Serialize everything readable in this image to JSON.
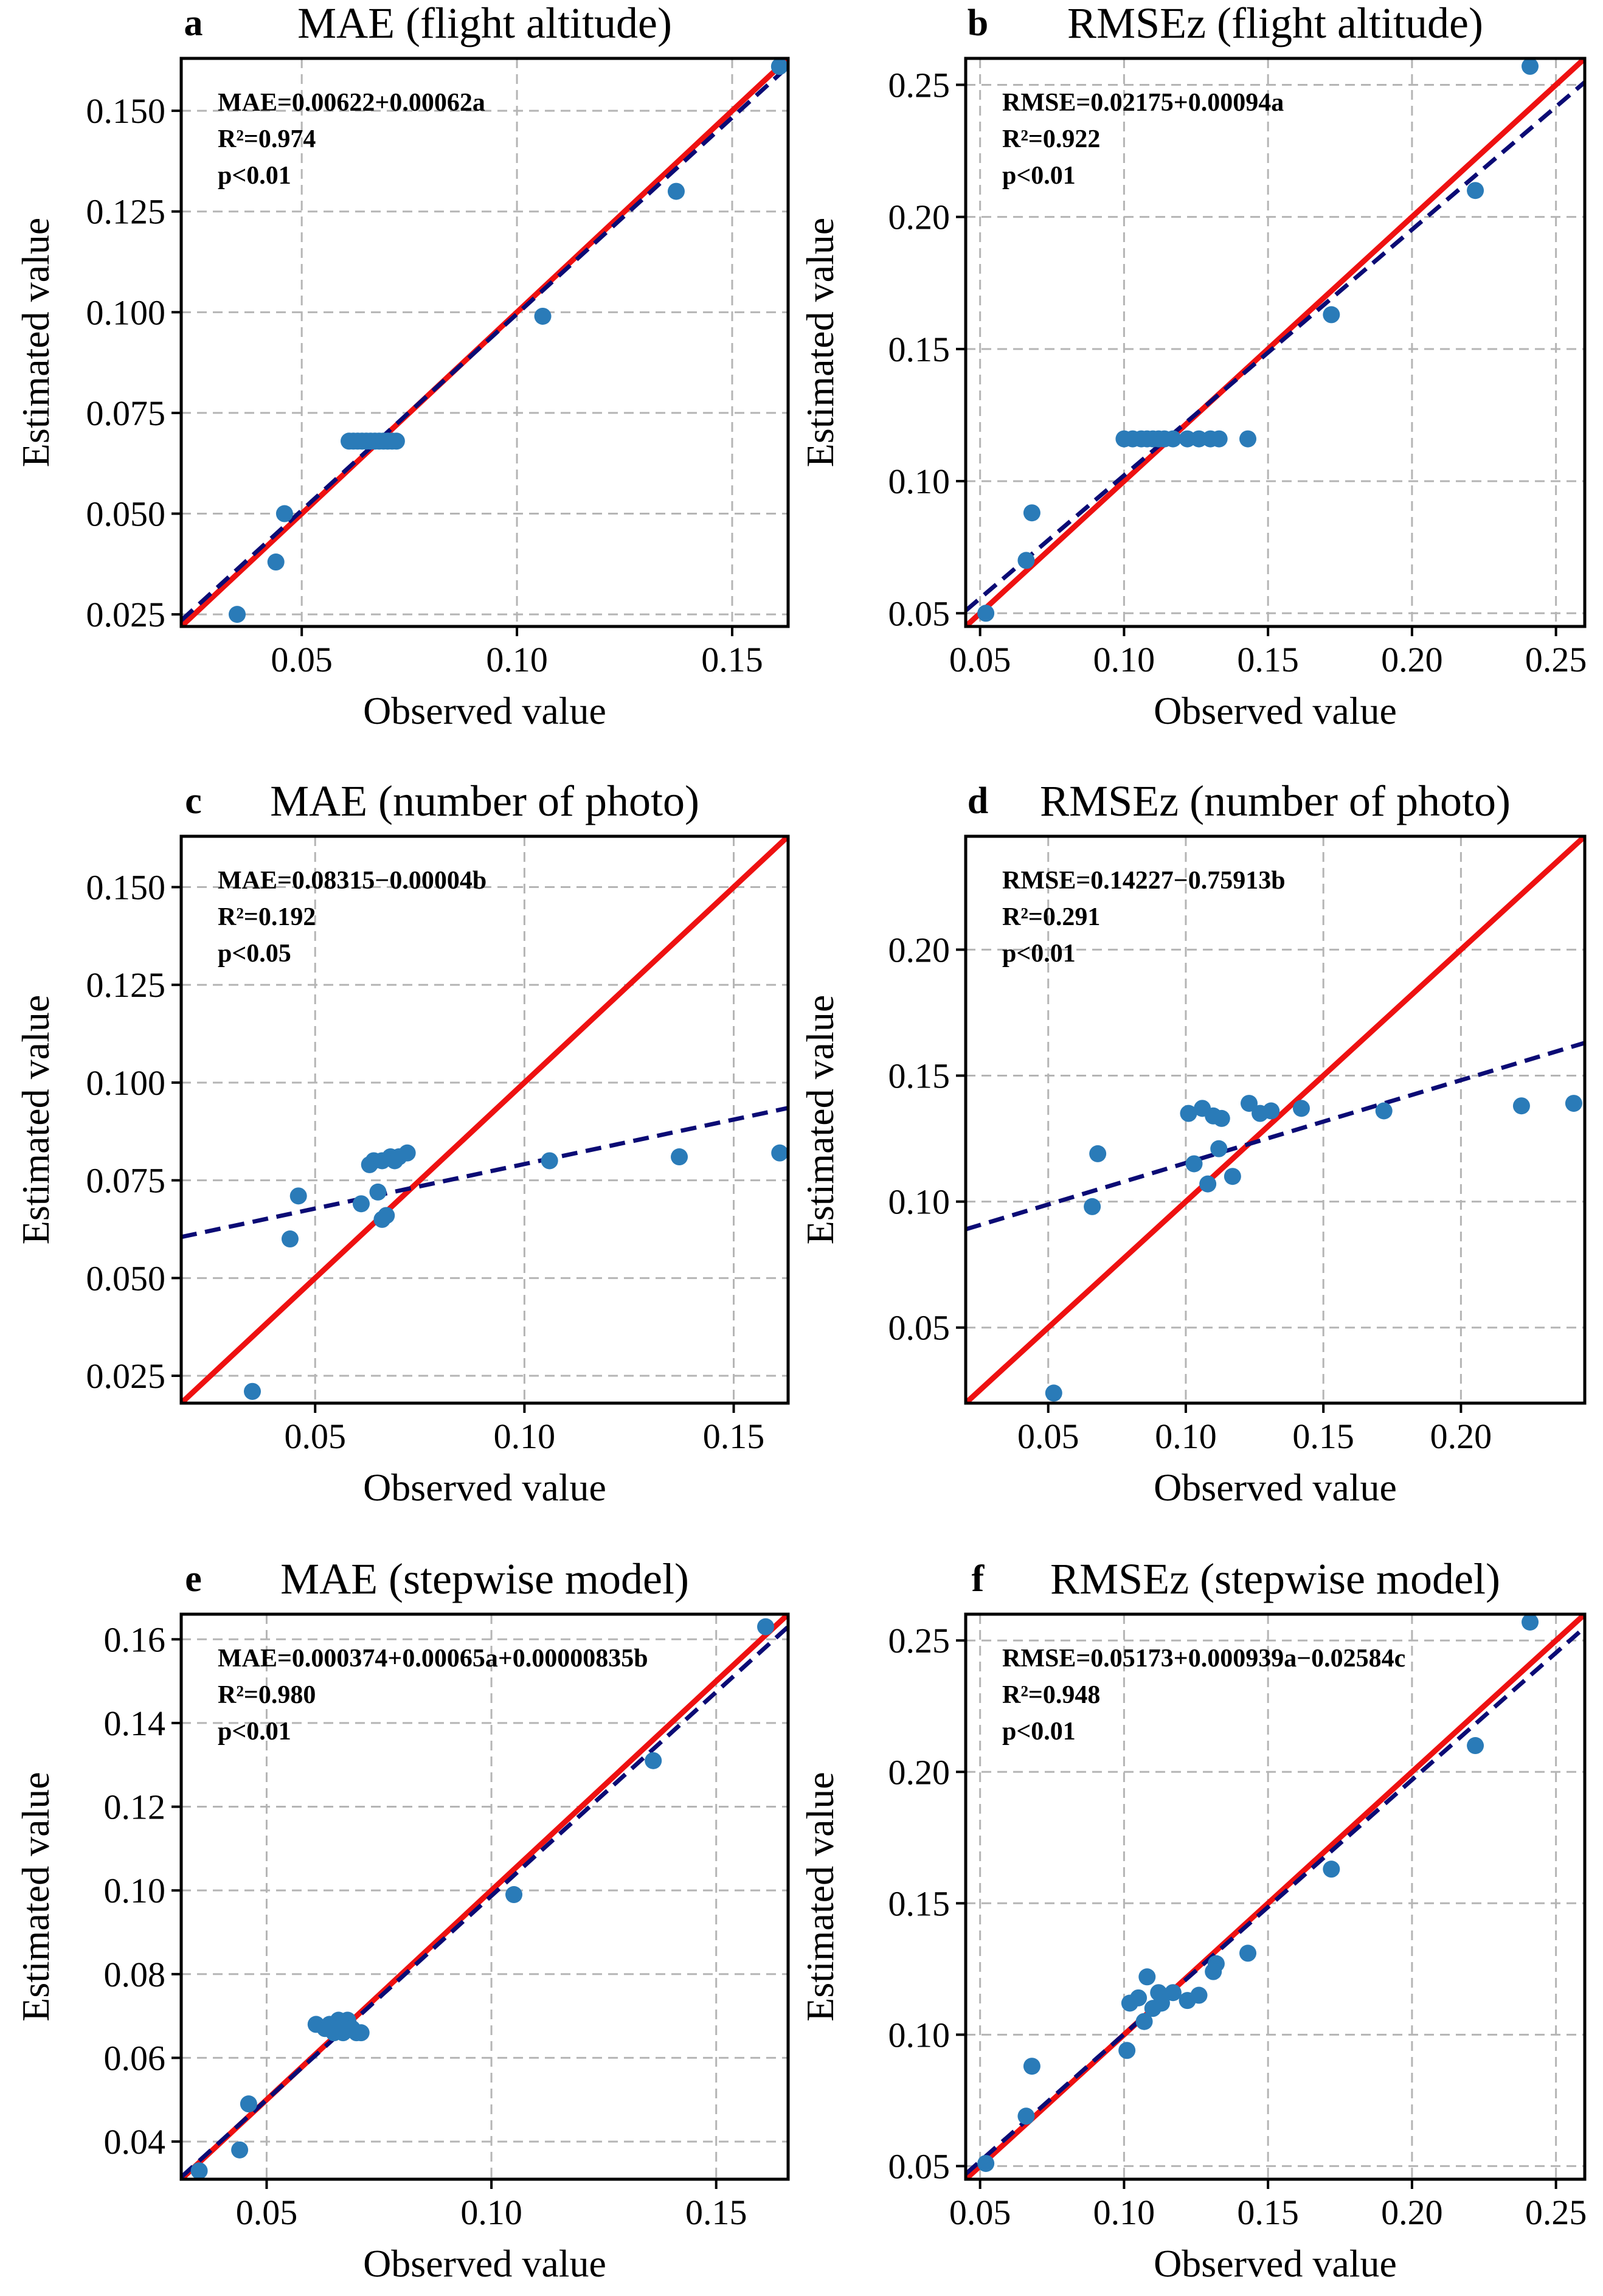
{
  "figure": {
    "panels_description": "Six scatter plots of estimated vs observed values"
  },
  "chart_data": [
    {
      "id": "a",
      "type": "scatter",
      "letter": "a",
      "title": "MAE (flight altitude)",
      "xlabel": "Observed value",
      "ylabel": "Estimated value",
      "xlim": [
        0.022,
        0.163
      ],
      "ylim": [
        0.022,
        0.163
      ],
      "xticks": [
        0.05,
        0.1,
        0.15
      ],
      "xtick_labels": [
        "0.05",
        "0.10",
        "0.15"
      ],
      "yticks": [
        0.025,
        0.05,
        0.075,
        0.1,
        0.125,
        0.15
      ],
      "ytick_labels": [
        "0.025",
        "0.050",
        "0.075",
        "0.100",
        "0.125",
        "0.150"
      ],
      "annotations": [
        "MAE=0.00622+0.00062a",
        "R²=0.974",
        "p<0.01"
      ],
      "legend": "none",
      "grid": true,
      "one_to_one_line": true,
      "fit_line": {
        "start": [
          0.022,
          0.0235
        ],
        "end": [
          0.163,
          0.161
        ]
      },
      "points": {
        "x": [
          0.035,
          0.044,
          0.046,
          0.061,
          0.062,
          0.063,
          0.064,
          0.065,
          0.066,
          0.067,
          0.068,
          0.069,
          0.07,
          0.071,
          0.072,
          0.106,
          0.137,
          0.161
        ],
        "y": [
          0.025,
          0.038,
          0.05,
          0.068,
          0.068,
          0.068,
          0.068,
          0.068,
          0.068,
          0.068,
          0.068,
          0.068,
          0.068,
          0.068,
          0.068,
          0.099,
          0.13,
          0.161
        ]
      }
    },
    {
      "id": "b",
      "type": "scatter",
      "letter": "b",
      "title": "RMSEz (flight altitude)",
      "xlabel": "Observed value",
      "ylabel": "Estimated value",
      "xlim": [
        0.045,
        0.26
      ],
      "ylim": [
        0.045,
        0.26
      ],
      "xticks": [
        0.05,
        0.1,
        0.15,
        0.2,
        0.25
      ],
      "xtick_labels": [
        "0.05",
        "0.10",
        "0.15",
        "0.20",
        "0.25"
      ],
      "yticks": [
        0.05,
        0.1,
        0.15,
        0.2,
        0.25
      ],
      "ytick_labels": [
        "0.05",
        "0.10",
        "0.15",
        "0.20",
        "0.25"
      ],
      "annotations": [
        "RMSE=0.02175+0.00094a",
        "R²=0.922",
        "p<0.01"
      ],
      "legend": "none",
      "grid": true,
      "one_to_one_line": true,
      "fit_line": {
        "start": [
          0.045,
          0.051
        ],
        "end": [
          0.26,
          0.251
        ]
      },
      "points": {
        "x": [
          0.052,
          0.066,
          0.068,
          0.1,
          0.103,
          0.106,
          0.108,
          0.11,
          0.112,
          0.114,
          0.117,
          0.122,
          0.126,
          0.13,
          0.133,
          0.143,
          0.172,
          0.222,
          0.241
        ],
        "y": [
          0.05,
          0.07,
          0.088,
          0.116,
          0.116,
          0.116,
          0.116,
          0.116,
          0.116,
          0.116,
          0.116,
          0.116,
          0.116,
          0.116,
          0.116,
          0.116,
          0.163,
          0.21,
          0.257
        ]
      }
    },
    {
      "id": "c",
      "type": "scatter",
      "letter": "c",
      "title": "MAE (number of photo)",
      "xlabel": "Observed value",
      "ylabel": "Estimated value",
      "xlim": [
        0.018,
        0.163
      ],
      "ylim": [
        0.018,
        0.163
      ],
      "xticks": [
        0.05,
        0.1,
        0.15
      ],
      "xtick_labels": [
        "0.05",
        "0.10",
        "0.15"
      ],
      "yticks": [
        0.025,
        0.05,
        0.075,
        0.1,
        0.125,
        0.15
      ],
      "ytick_labels": [
        "0.025",
        "0.050",
        "0.075",
        "0.100",
        "0.125",
        "0.150"
      ],
      "annotations": [
        "MAE=0.08315−0.00004b",
        "R²=0.192",
        "p<0.05"
      ],
      "legend": "none",
      "grid": true,
      "one_to_one_line": true,
      "fit_line": {
        "start": [
          0.018,
          0.0605
        ],
        "end": [
          0.163,
          0.0935
        ]
      },
      "points": {
        "x": [
          0.035,
          0.044,
          0.046,
          0.061,
          0.063,
          0.064,
          0.065,
          0.066,
          0.066,
          0.067,
          0.068,
          0.069,
          0.07,
          0.072,
          0.106,
          0.137,
          0.161
        ],
        "y": [
          0.021,
          0.06,
          0.071,
          0.069,
          0.079,
          0.08,
          0.072,
          0.065,
          0.08,
          0.066,
          0.081,
          0.08,
          0.081,
          0.082,
          0.08,
          0.081,
          0.082
        ]
      }
    },
    {
      "id": "d",
      "type": "scatter",
      "letter": "d",
      "title": "RMSEz (number of photo)",
      "xlabel": "Observed value",
      "ylabel": "Estimated value",
      "xlim": [
        0.02,
        0.245
      ],
      "ylim": [
        0.02,
        0.245
      ],
      "xticks": [
        0.05,
        0.1,
        0.15,
        0.2
      ],
      "xtick_labels": [
        "0.05",
        "0.10",
        "0.15",
        "0.20"
      ],
      "yticks": [
        0.05,
        0.1,
        0.15,
        0.2
      ],
      "ytick_labels": [
        "0.05",
        "0.10",
        "0.15",
        "0.20"
      ],
      "annotations": [
        "RMSE=0.14227−0.75913b",
        "R²=0.291",
        "p<0.01"
      ],
      "legend": "none",
      "grid": true,
      "one_to_one_line": true,
      "fit_line": {
        "start": [
          0.02,
          0.089
        ],
        "end": [
          0.245,
          0.163
        ]
      },
      "points": {
        "x": [
          0.052,
          0.066,
          0.068,
          0.101,
          0.103,
          0.106,
          0.108,
          0.11,
          0.112,
          0.113,
          0.117,
          0.123,
          0.127,
          0.131,
          0.142,
          0.172,
          0.222,
          0.241
        ],
        "y": [
          0.024,
          0.098,
          0.119,
          0.135,
          0.115,
          0.137,
          0.107,
          0.134,
          0.121,
          0.133,
          0.11,
          0.139,
          0.135,
          0.136,
          0.137,
          0.136,
          0.138,
          0.139
        ]
      }
    },
    {
      "id": "e",
      "type": "scatter",
      "letter": "e",
      "title": "MAE (stepwise model)",
      "xlabel": "Observed value",
      "ylabel": "Estimated value",
      "xlim": [
        0.031,
        0.166
      ],
      "ylim": [
        0.031,
        0.166
      ],
      "xticks": [
        0.05,
        0.1,
        0.15
      ],
      "xtick_labels": [
        "0.05",
        "0.10",
        "0.15"
      ],
      "yticks": [
        0.04,
        0.06,
        0.08,
        0.1,
        0.12,
        0.14,
        0.16
      ],
      "ytick_labels": [
        "0.04",
        "0.06",
        "0.08",
        "0.10",
        "0.12",
        "0.14",
        "0.16"
      ],
      "annotations": [
        "MAE=0.000374+0.00065a+0.00000835b",
        "R²=0.980",
        "p<0.01"
      ],
      "legend": "none",
      "grid": true,
      "one_to_one_line": true,
      "fit_line": {
        "start": [
          0.031,
          0.0315
        ],
        "end": [
          0.166,
          0.163
        ]
      },
      "points": {
        "x": [
          0.035,
          0.044,
          0.046,
          0.061,
          0.063,
          0.064,
          0.065,
          0.066,
          0.066,
          0.067,
          0.068,
          0.069,
          0.07,
          0.071,
          0.105,
          0.136,
          0.161
        ],
        "y": [
          0.033,
          0.038,
          0.049,
          0.068,
          0.067,
          0.068,
          0.066,
          0.069,
          0.067,
          0.066,
          0.069,
          0.067,
          0.066,
          0.066,
          0.099,
          0.131,
          0.163
        ]
      }
    },
    {
      "id": "f",
      "type": "scatter",
      "letter": "f",
      "title": "RMSEz (stepwise model)",
      "xlabel": "Observed value",
      "ylabel": "Estimated value",
      "xlim": [
        0.045,
        0.26
      ],
      "ylim": [
        0.045,
        0.26
      ],
      "xticks": [
        0.05,
        0.1,
        0.15,
        0.2,
        0.25
      ],
      "xtick_labels": [
        "0.05",
        "0.10",
        "0.15",
        "0.20",
        "0.25"
      ],
      "yticks": [
        0.05,
        0.1,
        0.15,
        0.2,
        0.25
      ],
      "ytick_labels": [
        "0.05",
        "0.10",
        "0.15",
        "0.20",
        "0.25"
      ],
      "annotations": [
        "RMSE=0.05173+0.000939a−0.02584c",
        "R²=0.948",
        "p<0.01"
      ],
      "legend": "none",
      "grid": true,
      "one_to_one_line": true,
      "fit_line": {
        "start": [
          0.045,
          0.047
        ],
        "end": [
          0.26,
          0.255
        ]
      },
      "points": {
        "x": [
          0.052,
          0.066,
          0.068,
          0.101,
          0.102,
          0.105,
          0.107,
          0.108,
          0.11,
          0.112,
          0.113,
          0.117,
          0.122,
          0.126,
          0.131,
          0.132,
          0.143,
          0.172,
          0.222,
          0.241
        ],
        "y": [
          0.051,
          0.069,
          0.088,
          0.094,
          0.112,
          0.114,
          0.105,
          0.122,
          0.11,
          0.116,
          0.112,
          0.116,
          0.113,
          0.115,
          0.124,
          0.127,
          0.131,
          0.163,
          0.21,
          0.257
        ]
      }
    }
  ]
}
